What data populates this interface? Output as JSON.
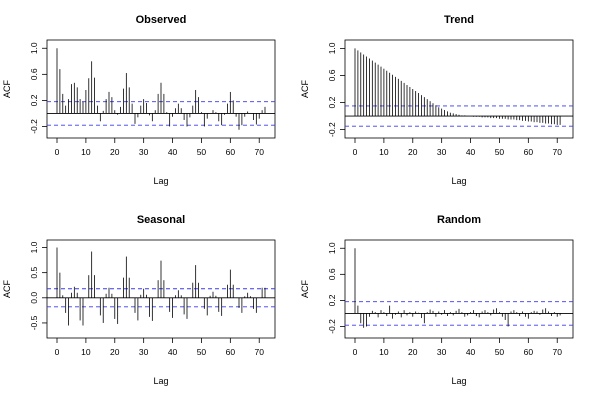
{
  "chart_data": [
    {
      "type": "bar",
      "title": "Observed",
      "xlabel": "Lag",
      "ylabel": "ACF",
      "xlim": [
        0,
        72
      ],
      "ylim": [
        -0.3,
        1.05
      ],
      "x_ticks": [
        0,
        10,
        20,
        30,
        40,
        50,
        60,
        70
      ],
      "y_ticks": [
        -0.2,
        0.2,
        0.6,
        1.0
      ],
      "y_tick_labels": [
        "-0.2",
        "0.2",
        "0.6",
        "1.0"
      ],
      "confidence_bound": 0.18,
      "lags": [
        0,
        1,
        2,
        3,
        4,
        5,
        6,
        7,
        8,
        9,
        10,
        11,
        12,
        13,
        14,
        15,
        16,
        17,
        18,
        19,
        20,
        21,
        22,
        23,
        24,
        25,
        26,
        27,
        28,
        29,
        30,
        31,
        32,
        33,
        34,
        35,
        36,
        37,
        38,
        39,
        40,
        41,
        42,
        43,
        44,
        45,
        46,
        47,
        48,
        49,
        50,
        51,
        52,
        53,
        54,
        55,
        56,
        57,
        58,
        59,
        60,
        61,
        62,
        63,
        64,
        65,
        66,
        67,
        68,
        69,
        70,
        71,
        72
      ],
      "values": [
        1.0,
        0.68,
        0.3,
        0.12,
        0.22,
        0.45,
        0.47,
        0.4,
        0.22,
        0.18,
        0.36,
        0.54,
        0.8,
        0.55,
        0.12,
        -0.12,
        0.04,
        0.22,
        0.33,
        0.25,
        0.05,
        -0.02,
        0.1,
        0.38,
        0.62,
        0.4,
        0.15,
        -0.16,
        -0.06,
        0.12,
        0.22,
        0.16,
        -0.03,
        -0.12,
        0.05,
        0.3,
        0.47,
        0.3,
        0.02,
        -0.2,
        -0.05,
        0.08,
        0.15,
        0.08,
        -0.1,
        -0.2,
        -0.06,
        0.12,
        0.36,
        0.25,
        0.02,
        -0.2,
        -0.08,
        0.0,
        0.05,
        0.02,
        -0.12,
        -0.18,
        -0.02,
        0.15,
        0.33,
        0.2,
        -0.05,
        -0.25,
        -0.18,
        -0.05,
        0.03,
        0.0,
        -0.1,
        -0.17,
        -0.08,
        0.05,
        0.1
      ]
    },
    {
      "type": "bar",
      "title": "Trend",
      "xlabel": "Lag",
      "ylabel": "ACF",
      "xlim": [
        0,
        72
      ],
      "ylim": [
        -0.25,
        1.05
      ],
      "x_ticks": [
        0,
        10,
        20,
        30,
        40,
        50,
        60,
        70
      ],
      "y_ticks": [
        -0.2,
        0.2,
        0.6,
        1.0
      ],
      "y_tick_labels": [
        "-0.2",
        "0.2",
        "0.6",
        "1.0"
      ],
      "confidence_bound": 0.15,
      "lags": [
        0,
        1,
        2,
        3,
        4,
        5,
        6,
        7,
        8,
        9,
        10,
        11,
        12,
        13,
        14,
        15,
        16,
        17,
        18,
        19,
        20,
        21,
        22,
        23,
        24,
        25,
        26,
        27,
        28,
        29,
        30,
        31,
        32,
        33,
        34,
        35,
        36,
        37,
        38,
        39,
        40,
        41,
        42,
        43,
        44,
        45,
        46,
        47,
        48,
        49,
        50,
        51,
        52,
        53,
        54,
        55,
        56,
        57,
        58,
        59,
        60,
        61,
        62,
        63,
        64,
        65,
        66,
        67,
        68,
        69,
        70,
        71
      ],
      "values": [
        1.0,
        0.97,
        0.94,
        0.91,
        0.88,
        0.85,
        0.82,
        0.79,
        0.76,
        0.73,
        0.7,
        0.67,
        0.64,
        0.61,
        0.58,
        0.55,
        0.52,
        0.49,
        0.46,
        0.43,
        0.4,
        0.37,
        0.34,
        0.31,
        0.28,
        0.25,
        0.22,
        0.19,
        0.16,
        0.13,
        0.11,
        0.09,
        0.07,
        0.05,
        0.04,
        0.03,
        0.02,
        0.01,
        0.01,
        0.0,
        0.0,
        -0.01,
        -0.01,
        -0.01,
        -0.02,
        -0.02,
        -0.02,
        -0.03,
        -0.03,
        -0.03,
        -0.04,
        -0.04,
        -0.04,
        -0.05,
        -0.05,
        -0.05,
        -0.06,
        -0.06,
        -0.07,
        -0.07,
        -0.08,
        -0.08,
        -0.09,
        -0.09,
        -0.1,
        -0.1,
        -0.11,
        -0.11,
        -0.12,
        -0.12,
        -0.13,
        -0.13
      ]
    },
    {
      "type": "bar",
      "title": "Seasonal",
      "xlabel": "Lag",
      "ylabel": "ACF",
      "xlim": [
        0,
        72
      ],
      "ylim": [
        -0.7,
        1.05
      ],
      "x_ticks": [
        0,
        10,
        20,
        30,
        40,
        50,
        60,
        70
      ],
      "y_ticks": [
        -0.5,
        0.0,
        0.5,
        1.0
      ],
      "y_tick_labels": [
        "-0.5",
        "0.0",
        "0.5",
        "1.0"
      ],
      "confidence_bound": 0.18,
      "lags": [
        0,
        1,
        2,
        3,
        4,
        5,
        6,
        7,
        8,
        9,
        10,
        11,
        12,
        13,
        14,
        15,
        16,
        17,
        18,
        19,
        20,
        21,
        22,
        23,
        24,
        25,
        26,
        27,
        28,
        29,
        30,
        31,
        32,
        33,
        34,
        35,
        36,
        37,
        38,
        39,
        40,
        41,
        42,
        43,
        44,
        45,
        46,
        47,
        48,
        49,
        50,
        51,
        52,
        53,
        54,
        55,
        56,
        57,
        58,
        59,
        60,
        61,
        62,
        63,
        64,
        65,
        66,
        67,
        68,
        69,
        70,
        71,
        72
      ],
      "values": [
        1.0,
        0.5,
        0.05,
        -0.3,
        -0.55,
        0.1,
        0.22,
        0.1,
        -0.45,
        -0.55,
        0.0,
        0.45,
        0.92,
        0.45,
        0.0,
        -0.35,
        -0.5,
        0.08,
        0.2,
        0.08,
        -0.42,
        -0.52,
        0.0,
        0.4,
        0.82,
        0.4,
        0.0,
        -0.3,
        -0.45,
        0.06,
        0.18,
        0.06,
        -0.38,
        -0.46,
        0.0,
        0.35,
        0.74,
        0.35,
        0.0,
        -0.28,
        -0.4,
        0.05,
        0.15,
        0.05,
        -0.33,
        -0.42,
        0.0,
        0.3,
        0.65,
        0.3,
        0.0,
        -0.22,
        -0.35,
        0.04,
        0.12,
        0.04,
        -0.28,
        -0.36,
        0.0,
        0.26,
        0.56,
        0.26,
        0.0,
        -0.2,
        -0.3,
        0.03,
        0.1,
        0.03,
        -0.22,
        -0.3,
        0.0,
        0.2,
        0.2
      ]
    },
    {
      "type": "bar",
      "title": "Random",
      "xlabel": "Lag",
      "ylabel": "ACF",
      "xlim": [
        0,
        72
      ],
      "ylim": [
        -0.3,
        1.05
      ],
      "x_ticks": [
        0,
        10,
        20,
        30,
        40,
        50,
        60,
        70
      ],
      "y_ticks": [
        -0.2,
        0.2,
        0.6,
        1.0
      ],
      "y_tick_labels": [
        "-0.2",
        "0.2",
        "0.6",
        "1.0"
      ],
      "confidence_bound": 0.18,
      "lags": [
        0,
        1,
        2,
        3,
        4,
        5,
        6,
        7,
        8,
        9,
        10,
        11,
        12,
        13,
        14,
        15,
        16,
        17,
        18,
        19,
        20,
        21,
        22,
        23,
        24,
        25,
        26,
        27,
        28,
        29,
        30,
        31,
        32,
        33,
        34,
        35,
        36,
        37,
        38,
        39,
        40,
        41,
        42,
        43,
        44,
        45,
        46,
        47,
        48,
        49,
        50,
        51,
        52,
        53,
        54,
        55,
        56,
        57,
        58,
        59,
        60,
        61,
        62,
        63,
        64,
        65,
        66,
        67,
        68,
        69,
        70,
        71
      ],
      "values": [
        1.0,
        0.12,
        -0.15,
        -0.22,
        -0.2,
        -0.05,
        0.04,
        0.02,
        -0.06,
        0.05,
        0.02,
        -0.04,
        0.12,
        -0.08,
        -0.02,
        0.03,
        -0.06,
        0.05,
        -0.03,
        0.02,
        -0.05,
        0.03,
        0.01,
        -0.07,
        -0.15,
        0.02,
        0.06,
        0.04,
        -0.05,
        0.03,
        -0.02,
        0.05,
        -0.04,
        0.02,
        -0.03,
        0.04,
        0.07,
        0.02,
        -0.05,
        -0.03,
        0.02,
        0.05,
        -0.04,
        -0.06,
        0.03,
        0.05,
        0.02,
        -0.03,
        0.06,
        0.08,
        0.02,
        -0.05,
        -0.1,
        -0.2,
        0.03,
        0.05,
        0.02,
        -0.04,
        0.03,
        -0.05,
        -0.08,
        0.02,
        0.04,
        0.03,
        -0.02,
        0.06,
        0.08,
        0.03,
        -0.04,
        0.02,
        -0.05,
        -0.03
      ]
    }
  ]
}
